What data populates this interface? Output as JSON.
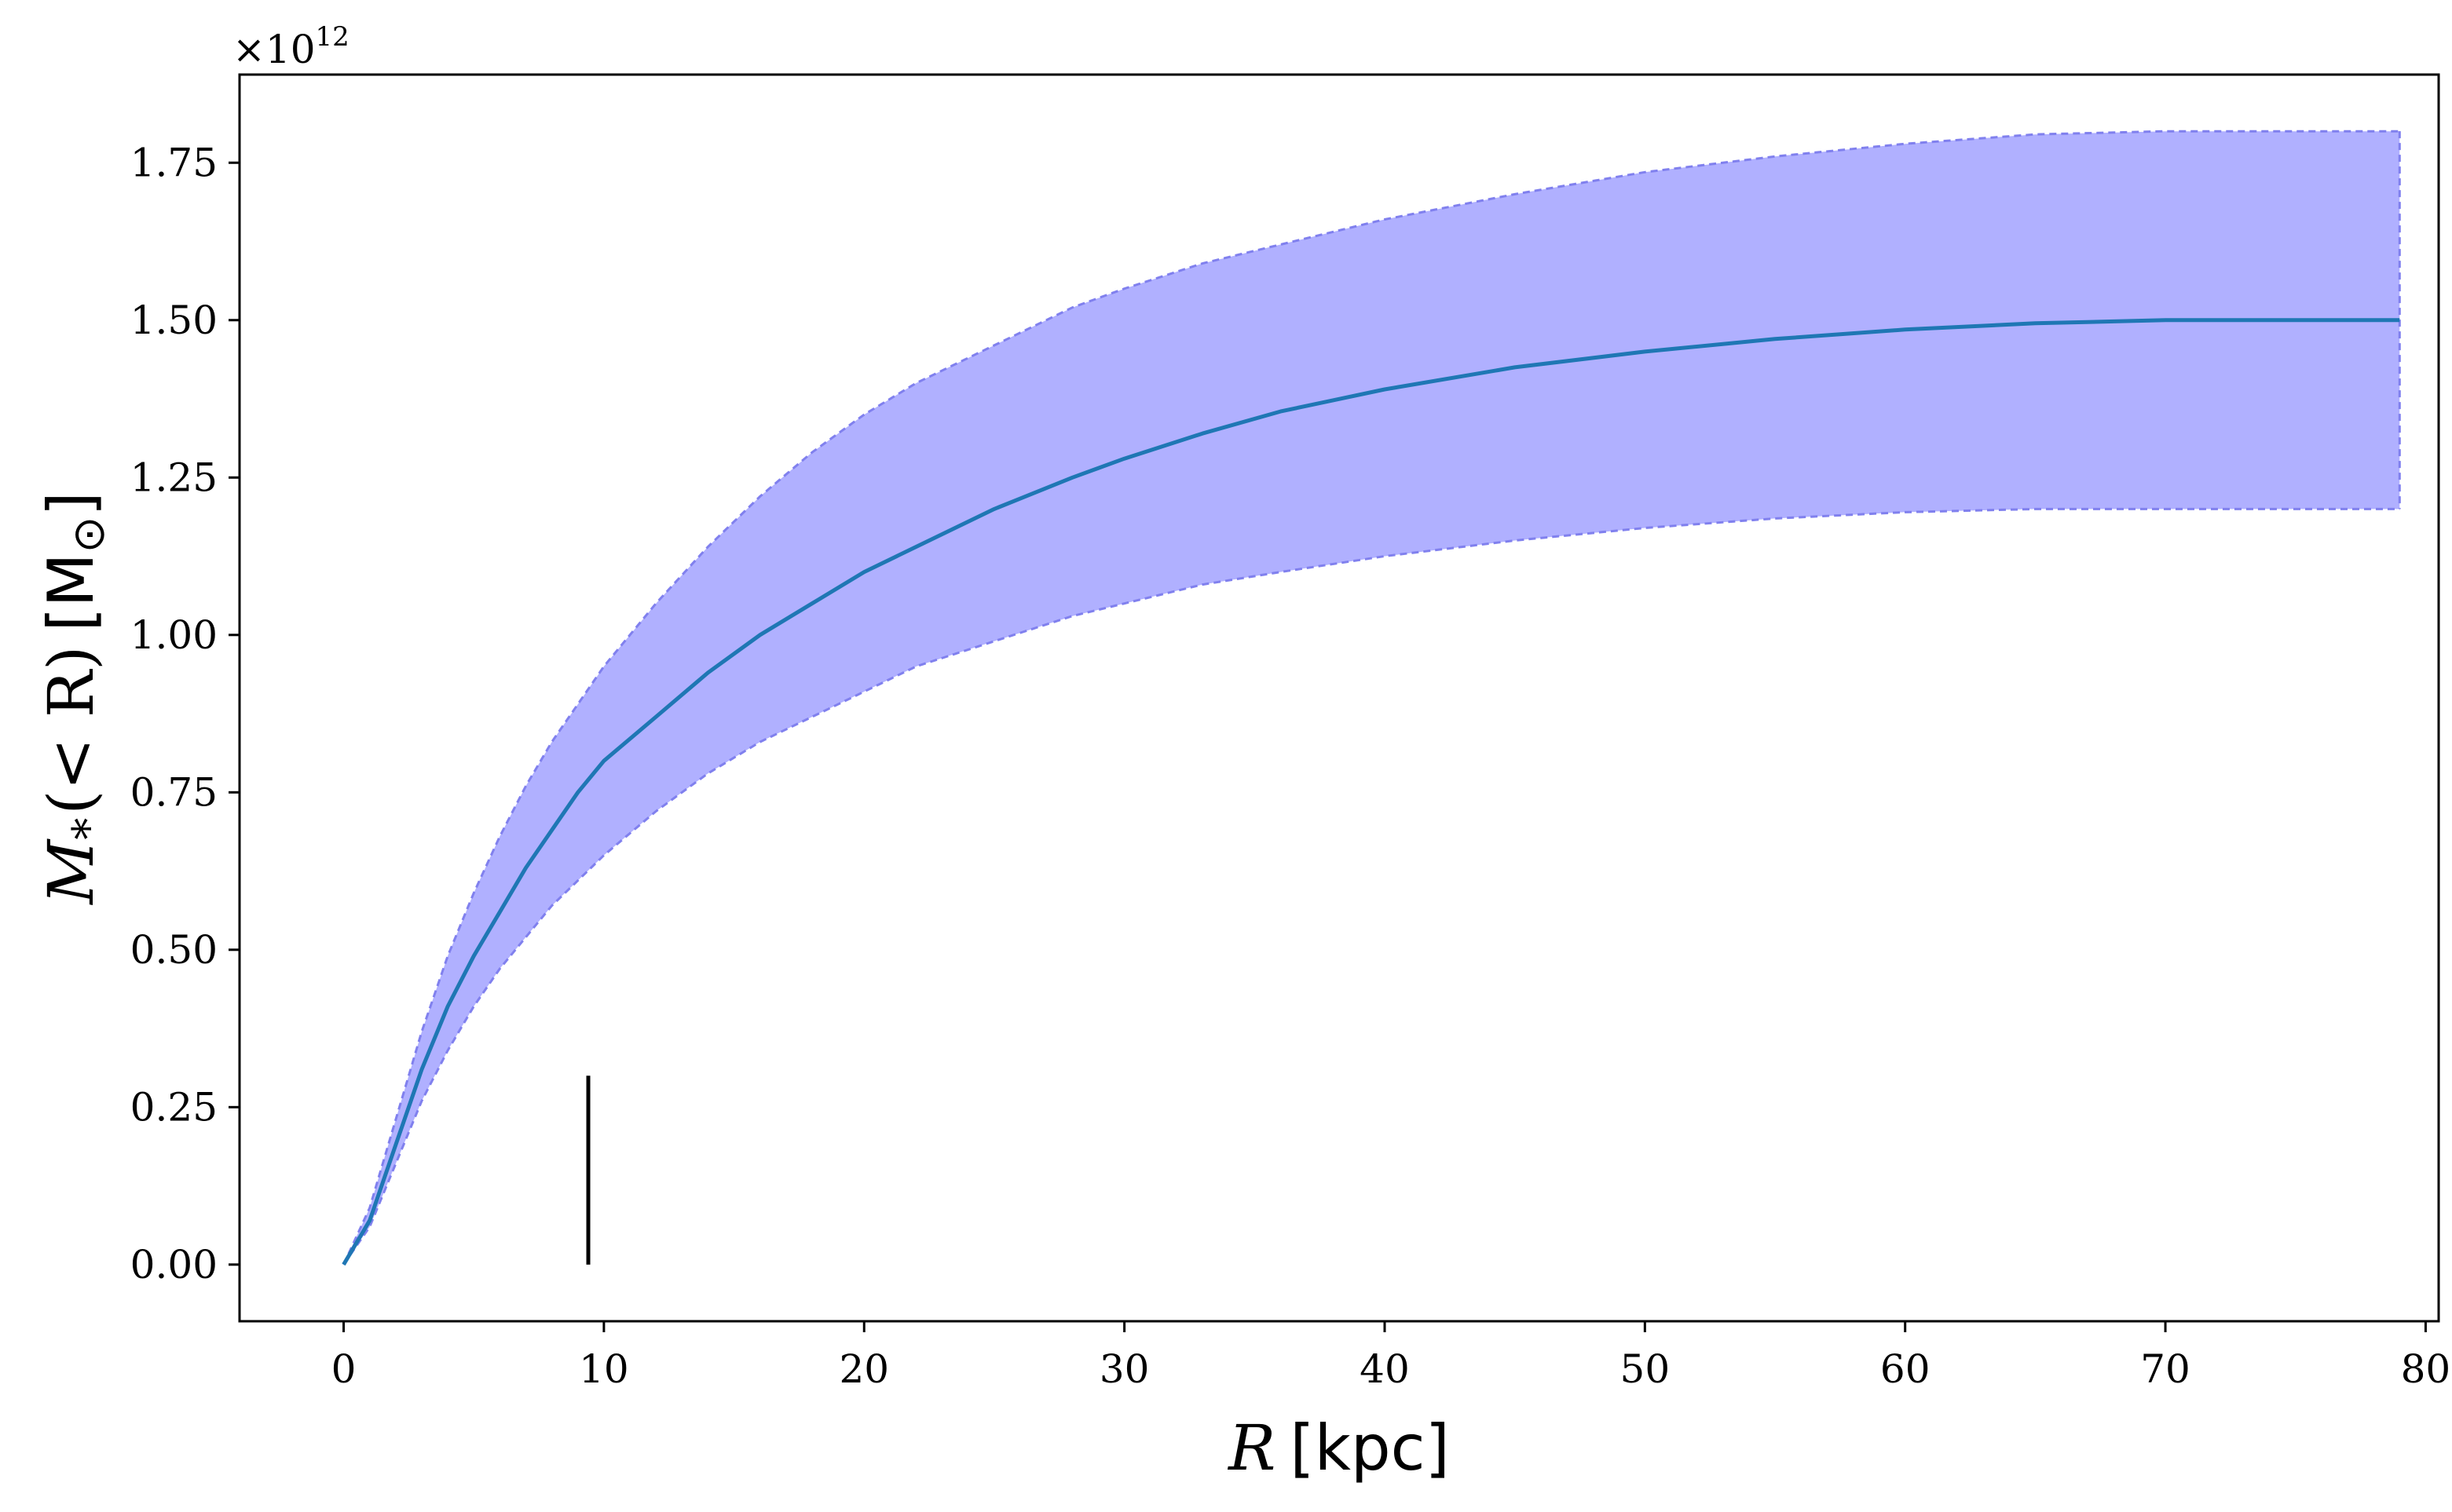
{
  "chart_data": {
    "type": "line",
    "xlabel": {
      "symbol": "R",
      "unit": "[kpc]"
    },
    "ylabel": {
      "symbol": "M",
      "subscript": "*",
      "args": "(< R)",
      "unit": "[M",
      "unit_sub": "⊙",
      "unit_close": "]"
    },
    "offset_text": {
      "base": "×10",
      "exponent": "12"
    },
    "xlim": [
      -4,
      80.5
    ],
    "ylim": [
      -0.09,
      1.89
    ],
    "xticks": [
      0,
      10,
      20,
      30,
      40,
      50,
      60,
      70,
      80
    ],
    "xtick_labels": [
      "0",
      "10",
      "20",
      "30",
      "40",
      "50",
      "60",
      "70",
      "80"
    ],
    "yticks": [
      0.0,
      0.25,
      0.5,
      0.75,
      1.0,
      1.25,
      1.5,
      1.75
    ],
    "ytick_labels": [
      "0.00",
      "0.25",
      "0.50",
      "0.75",
      "1.00",
      "1.25",
      "1.50",
      "1.75"
    ],
    "grid": false,
    "series": [
      {
        "values_x": [
          0,
          1,
          2,
          3,
          4,
          5,
          6,
          7,
          8,
          9,
          10,
          12,
          14,
          16,
          18,
          20,
          22,
          25,
          28,
          30,
          33,
          36,
          40,
          45,
          50,
          55,
          60,
          65,
          70,
          75,
          79
        ],
        "values_y": [
          0.0,
          0.07,
          0.19,
          0.31,
          0.41,
          0.49,
          0.56,
          0.63,
          0.69,
          0.75,
          0.8,
          0.87,
          0.94,
          1.0,
          1.05,
          1.1,
          1.14,
          1.2,
          1.25,
          1.28,
          1.32,
          1.355,
          1.39,
          1.425,
          1.45,
          1.47,
          1.485,
          1.495,
          1.5,
          1.5,
          1.5
        ],
        "color": "#1f77b4"
      }
    ],
    "band": {
      "x": [
        0,
        1,
        2,
        3,
        4,
        5,
        6,
        7,
        8,
        9,
        10,
        12,
        14,
        16,
        18,
        20,
        22,
        25,
        28,
        30,
        33,
        36,
        40,
        45,
        50,
        55,
        60,
        65,
        70,
        75,
        79
      ],
      "upper": [
        0.0,
        0.09,
        0.23,
        0.37,
        0.49,
        0.59,
        0.68,
        0.76,
        0.83,
        0.89,
        0.95,
        1.05,
        1.14,
        1.22,
        1.29,
        1.35,
        1.4,
        1.46,
        1.52,
        1.55,
        1.59,
        1.62,
        1.66,
        1.7,
        1.735,
        1.76,
        1.78,
        1.795,
        1.8,
        1.8,
        1.8
      ],
      "lower": [
        0.0,
        0.06,
        0.16,
        0.26,
        0.34,
        0.41,
        0.47,
        0.52,
        0.57,
        0.61,
        0.65,
        0.72,
        0.78,
        0.83,
        0.87,
        0.91,
        0.95,
        0.99,
        1.03,
        1.05,
        1.08,
        1.1,
        1.125,
        1.15,
        1.17,
        1.185,
        1.195,
        1.2,
        1.2,
        1.2,
        1.2
      ],
      "fill_color": "#b0b0ff",
      "edge_color": "#8080ee"
    },
    "marker_line": {
      "x": 9.4,
      "y_from": 0.0,
      "y_to": 0.3,
      "color": "#000000"
    }
  }
}
